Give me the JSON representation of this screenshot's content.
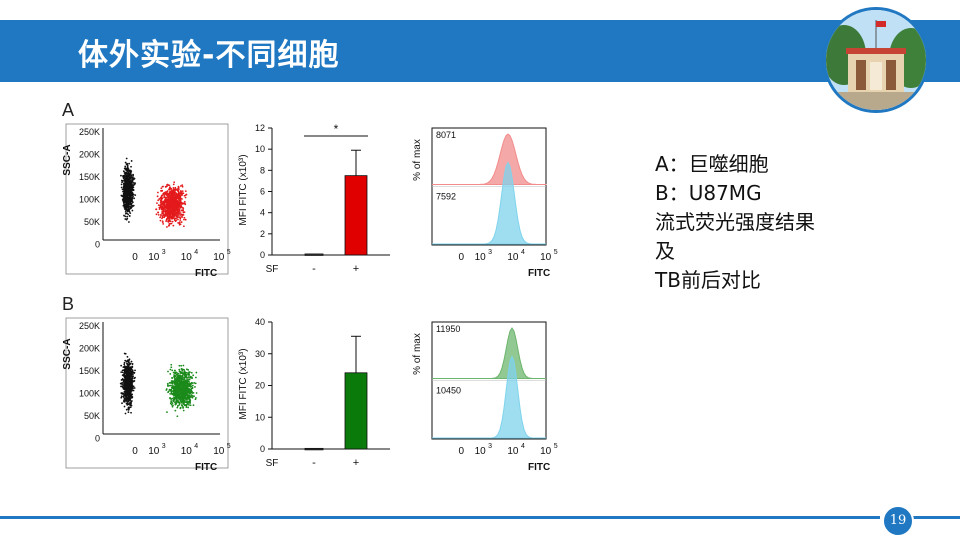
{
  "title": "体外实验-不同细胞",
  "page_number": "19",
  "notes": [
    "A：巨噬细胞",
    "B：U87MG",
    "流式荧光强度结果",
    "及",
    "TB前后对比"
  ],
  "panels": [
    {
      "letter": "A",
      "scatter": {
        "ylabel": "SSC-A",
        "xlabel": "FITC",
        "yticks": [
          "250K",
          "200K",
          "150K",
          "100K",
          "50K",
          "0"
        ],
        "xticks": [
          "0",
          "10",
          "10",
          "10"
        ],
        "xsup": [
          "",
          "3",
          "4",
          "5"
        ],
        "colors": [
          "#111111",
          "#e31a1c"
        ]
      },
      "bar": {
        "ylabel": "MFI FITC (x10³)",
        "xlabel": "SF",
        "categories": [
          "-",
          "+"
        ],
        "yticks": [
          "0",
          "2",
          "4",
          "6",
          "8",
          "10",
          "12"
        ],
        "ylim": [
          0,
          12
        ],
        "values": [
          0.1,
          7.5
        ],
        "errors": [
          0.05,
          2.4
        ],
        "colors": [
          "#333333",
          "#e00000"
        ],
        "significance": "*"
      },
      "histogram": {
        "ylabel": "% of max",
        "xlabel": "FITC",
        "xticks": [
          "0",
          "10",
          "10",
          "10"
        ],
        "xsup": [
          "",
          "3",
          "4",
          "5"
        ],
        "labels": [
          "8071",
          "7592"
        ],
        "colors": [
          "#f28b8b",
          "#7fd3ec"
        ]
      }
    },
    {
      "letter": "B",
      "scatter": {
        "ylabel": "SSC-A",
        "xlabel": "FITC",
        "yticks": [
          "250K",
          "200K",
          "150K",
          "100K",
          "50K",
          "0"
        ],
        "xticks": [
          "0",
          "10",
          "10",
          "10"
        ],
        "xsup": [
          "",
          "3",
          "4",
          "5"
        ],
        "colors": [
          "#111111",
          "#1b8a1b"
        ]
      },
      "bar": {
        "ylabel": "MFI FITC (x10³)",
        "xlabel": "SF",
        "categories": [
          "-",
          "+"
        ],
        "yticks": [
          "0",
          "10",
          "20",
          "30",
          "40"
        ],
        "ylim": [
          0,
          40
        ],
        "values": [
          0.2,
          24
        ],
        "errors": [
          0.1,
          11.5
        ],
        "colors": [
          "#333333",
          "#0a7a0a"
        ]
      },
      "histogram": {
        "ylabel": "% of max",
        "xlabel": "FITC",
        "xticks": [
          "0",
          "10",
          "10",
          "10"
        ],
        "xsup": [
          "",
          "3",
          "4",
          "5"
        ],
        "labels": [
          "11950",
          "10450"
        ],
        "colors": [
          "#6db56d",
          "#7fd3ec"
        ]
      }
    }
  ],
  "chart_data": [
    {
      "type": "scatter",
      "title": "",
      "xlabel": "FITC",
      "ylabel": "SSC-A",
      "ylim": [
        0,
        250000
      ],
      "series": [
        {
          "values": []
        },
        {
          "values": []
        }
      ]
    },
    {
      "type": "bar",
      "title": "",
      "xlabel": "SF",
      "ylabel": "MFI FITC (x10³)",
      "categories": [
        "-",
        "+"
      ],
      "values": [
        0.1,
        7.5
      ],
      "ylim": [
        0,
        12
      ]
    },
    {
      "type": "area",
      "title": "",
      "xlabel": "FITC",
      "ylabel": "% of max",
      "series": [
        {
          "values": []
        },
        {
          "values": []
        }
      ]
    },
    {
      "type": "scatter",
      "title": "",
      "xlabel": "FITC",
      "ylabel": "SSC-A",
      "ylim": [
        0,
        250000
      ],
      "series": [
        {
          "values": []
        },
        {
          "values": []
        }
      ]
    },
    {
      "type": "bar",
      "title": "",
      "xlabel": "SF",
      "ylabel": "MFI FITC (x10³)",
      "categories": [
        "-",
        "+"
      ],
      "values": [
        0.2,
        24
      ],
      "ylim": [
        0,
        40
      ]
    },
    {
      "type": "area",
      "title": "",
      "xlabel": "FITC",
      "ylabel": "% of max",
      "series": [
        {
          "values": []
        },
        {
          "values": []
        }
      ]
    }
  ]
}
